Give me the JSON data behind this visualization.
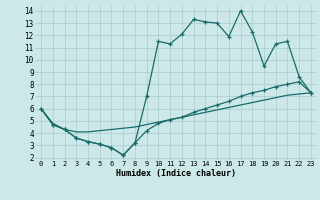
{
  "xlabel": "Humidex (Indice chaleur)",
  "bg_color": "#cce8e8",
  "line_color": "#1a6b6b",
  "grid_color": "#aacccc",
  "xlim": [
    -0.5,
    23.5
  ],
  "ylim": [
    1.8,
    14.4
  ],
  "xticks": [
    0,
    1,
    2,
    3,
    4,
    5,
    6,
    7,
    8,
    9,
    10,
    11,
    12,
    13,
    14,
    15,
    16,
    17,
    18,
    19,
    20,
    21,
    22,
    23
  ],
  "yticks": [
    2,
    3,
    4,
    5,
    6,
    7,
    8,
    9,
    10,
    11,
    12,
    13,
    14
  ],
  "line1_x": [
    0,
    1,
    2,
    3,
    4,
    5,
    6,
    7,
    8,
    9,
    10,
    11,
    12,
    13,
    14,
    15,
    16,
    17,
    18,
    19,
    20,
    21,
    22,
    23
  ],
  "line1_y": [
    6.0,
    4.7,
    4.3,
    3.6,
    3.3,
    3.1,
    2.8,
    2.2,
    3.2,
    7.0,
    11.5,
    11.3,
    12.1,
    13.3,
    13.1,
    13.0,
    11.9,
    14.0,
    12.3,
    9.5,
    11.3,
    11.5,
    8.6,
    7.3
  ],
  "line2_x": [
    0,
    1,
    2,
    3,
    4,
    5,
    6,
    7,
    8,
    9,
    10,
    11,
    12,
    13,
    14,
    15,
    16,
    17,
    18,
    19,
    20,
    21,
    22,
    23
  ],
  "line2_y": [
    6.0,
    4.7,
    4.3,
    3.6,
    3.3,
    3.1,
    2.8,
    2.2,
    3.2,
    4.2,
    4.8,
    5.1,
    5.3,
    5.7,
    6.0,
    6.3,
    6.6,
    7.0,
    7.3,
    7.5,
    7.8,
    8.0,
    8.2,
    7.3
  ],
  "line3_x": [
    0,
    1,
    2,
    3,
    4,
    5,
    6,
    7,
    8,
    9,
    10,
    11,
    12,
    13,
    14,
    15,
    16,
    17,
    18,
    19,
    20,
    21,
    22,
    23
  ],
  "line3_y": [
    6.0,
    4.8,
    4.3,
    4.1,
    4.1,
    4.2,
    4.3,
    4.4,
    4.5,
    4.7,
    4.9,
    5.1,
    5.3,
    5.5,
    5.7,
    5.9,
    6.1,
    6.3,
    6.5,
    6.7,
    6.9,
    7.1,
    7.2,
    7.3
  ]
}
